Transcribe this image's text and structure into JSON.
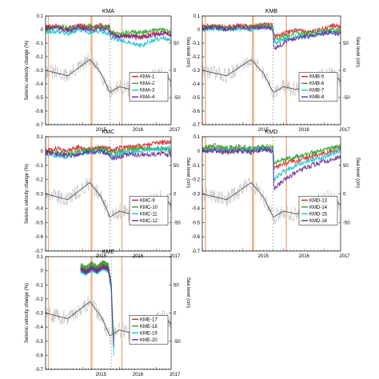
{
  "figure": {
    "shared": {
      "ylabel_left": "Seismic velocity change (%)",
      "ylabel_right": "Sea level (cm)",
      "y_left_ticks": [
        "0.1",
        "0",
        "-0.1",
        "-0.2",
        "-0.3",
        "-0.4",
        "-0.5",
        "-0.6",
        "-0.7"
      ],
      "y_left_range": [
        -0.7,
        0.1
      ],
      "y_right_ticks": [
        "50",
        "0",
        "-50"
      ],
      "y_right_range": [
        -100,
        100
      ],
      "x_ticks": [
        "2015",
        "2016",
        "2017"
      ],
      "x_range": [
        2014.0,
        2017.4
      ],
      "shaded_bands": [
        {
          "from": 2014.06,
          "to": 2014.09
        },
        {
          "from": 2015.22,
          "to": 2015.27
        },
        {
          "from": 2016.05,
          "to": 2016.08
        }
      ],
      "event_line": 2015.74,
      "event_line_zoom_panel": 2015.78,
      "colors": {
        "series1": "#d62728",
        "series2": "#2ca02c",
        "series3": "#17becf",
        "series4": "#6a2c91",
        "sea_level": "#888888",
        "band": "#f4b183"
      }
    },
    "panels": [
      {
        "id": "KMA",
        "title": "KMA",
        "labels": [
          "KMA-1",
          "KMA-2",
          "KMA-3",
          "KMA-4"
        ]
      },
      {
        "id": "KMB",
        "title": "KMB",
        "labels": [
          "KMB-5",
          "KMB-6",
          "KMB-7",
          "KMB-8"
        ]
      },
      {
        "id": "KMC",
        "title": "KMC",
        "labels": [
          "KMC-9",
          "KMC-10",
          "KMC-11",
          "KMC-12"
        ]
      },
      {
        "id": "KMD",
        "title": "KMD",
        "labels": [
          "KMD-13",
          "KMD-14",
          "KMD-15",
          "KMD-16"
        ]
      },
      {
        "id": "KME",
        "title": "KME",
        "labels": [
          "KME-17",
          "KME-18",
          "KME-19",
          "KME-20"
        ]
      }
    ]
  },
  "chart_data": [
    {
      "type": "line",
      "title": "KMA",
      "xlabel": "",
      "ylabel": "Seismic velocity change (%)",
      "y2label": "Sea level (cm)",
      "xlim": [
        2014.0,
        2017.4
      ],
      "ylim": [
        -0.7,
        0.1
      ],
      "y2lim": [
        -100,
        100
      ],
      "x": [
        2014.0,
        2014.3,
        2014.6,
        2014.9,
        2015.2,
        2015.5,
        2015.74,
        2015.76,
        2016.0,
        2016.3,
        2016.6,
        2016.9,
        2017.2,
        2017.4
      ],
      "series": [
        {
          "name": "KMA-1",
          "values": [
            0.02,
            0.03,
            0.0,
            0.03,
            0.02,
            0.03,
            0.02,
            -0.02,
            -0.05,
            -0.04,
            -0.05,
            -0.03,
            -0.02,
            -0.03
          ]
        },
        {
          "name": "KMA-2",
          "values": [
            0.0,
            0.02,
            0.02,
            0.01,
            0.03,
            0.02,
            0.03,
            -0.02,
            -0.03,
            -0.02,
            -0.02,
            -0.01,
            0.0,
            -0.02
          ]
        },
        {
          "name": "KMA-3",
          "values": [
            -0.02,
            -0.01,
            -0.03,
            0.0,
            -0.02,
            -0.01,
            -0.03,
            -0.06,
            -0.08,
            -0.09,
            -0.12,
            -0.08,
            -0.06,
            -0.08
          ]
        },
        {
          "name": "KMA-4",
          "values": [
            0.01,
            0.02,
            -0.01,
            0.02,
            0.0,
            0.01,
            0.0,
            -0.04,
            -0.05,
            -0.05,
            -0.06,
            -0.04,
            -0.03,
            -0.04
          ]
        },
        {
          "name": "",
          "axis": "right",
          "values": [
            0,
            -5,
            -10,
            5,
            20,
            -5,
            -40,
            -40,
            -30,
            -35,
            -30,
            -10,
            -5,
            -20
          ]
        }
      ]
    },
    {
      "type": "line",
      "title": "KMB",
      "xlabel": "",
      "ylabel": "",
      "y2label": "Sea level (cm)",
      "xlim": [
        2014.0,
        2017.4
      ],
      "ylim": [
        -0.7,
        0.1
      ],
      "y2lim": [
        -100,
        100
      ],
      "x": [
        2014.0,
        2014.3,
        2014.6,
        2014.9,
        2015.2,
        2015.5,
        2015.74,
        2015.76,
        2016.0,
        2016.3,
        2016.6,
        2016.9,
        2017.2,
        2017.4
      ],
      "series": [
        {
          "name": "KMB-5",
          "values": [
            0.02,
            0.03,
            0.02,
            0.03,
            0.02,
            0.04,
            0.03,
            -0.05,
            -0.03,
            0.0,
            -0.02,
            0.0,
            0.03,
            0.02
          ]
        },
        {
          "name": "KMB-6",
          "values": [
            0.01,
            0.02,
            0.01,
            0.02,
            0.02,
            0.03,
            0.02,
            -0.08,
            -0.05,
            -0.02,
            -0.03,
            -0.01,
            0.0,
            -0.01
          ]
        },
        {
          "name": "KMB-7",
          "values": [
            0.0,
            0.01,
            0.0,
            0.01,
            0.0,
            0.02,
            0.01,
            -0.1,
            -0.07,
            -0.05,
            -0.05,
            -0.03,
            -0.02,
            -0.03
          ]
        },
        {
          "name": "KMB-8",
          "values": [
            0.01,
            0.02,
            0.0,
            0.02,
            0.01,
            0.02,
            0.0,
            -0.14,
            -0.1,
            -0.06,
            -0.05,
            -0.03,
            -0.02,
            -0.04
          ]
        },
        {
          "name": "",
          "axis": "right",
          "values": [
            0,
            -5,
            -10,
            5,
            20,
            -5,
            -40,
            -40,
            -30,
            -35,
            -30,
            -10,
            -5,
            -20
          ]
        }
      ]
    },
    {
      "type": "line",
      "title": "KMC",
      "xlabel": "",
      "ylabel": "Seismic velocity change (%)",
      "y2label": "Sea level (cm)",
      "xlim": [
        2014.0,
        2017.4
      ],
      "ylim": [
        -0.7,
        0.1
      ],
      "y2lim": [
        -100,
        100
      ],
      "x": [
        2014.0,
        2014.3,
        2014.6,
        2014.9,
        2015.2,
        2015.5,
        2015.74,
        2015.76,
        2016.0,
        2016.3,
        2016.6,
        2016.9,
        2017.2,
        2017.4
      ],
      "series": [
        {
          "name": "KMC-9",
          "values": [
            0.0,
            0.02,
            0.0,
            0.03,
            0.01,
            0.03,
            0.02,
            0.0,
            0.02,
            0.03,
            0.04,
            0.05,
            0.06,
            0.06
          ]
        },
        {
          "name": "KMC-10",
          "values": [
            0.0,
            -0.01,
            -0.02,
            0.0,
            0.01,
            0.02,
            0.0,
            -0.02,
            0.0,
            0.01,
            0.02,
            0.02,
            0.01,
            0.0
          ]
        },
        {
          "name": "KMC-11",
          "values": [
            -0.02,
            -0.03,
            -0.04,
            -0.02,
            -0.01,
            0.0,
            -0.02,
            -0.04,
            -0.02,
            -0.01,
            0.0,
            0.01,
            0.02,
            0.02
          ]
        },
        {
          "name": "KMC-12",
          "values": [
            -0.01,
            -0.02,
            -0.03,
            -0.02,
            -0.01,
            0.0,
            -0.03,
            -0.05,
            -0.04,
            -0.02,
            -0.03,
            -0.02,
            -0.02,
            -0.03
          ]
        },
        {
          "name": "",
          "axis": "right",
          "values": [
            0,
            -5,
            -10,
            5,
            20,
            -5,
            -40,
            -40,
            -30,
            -35,
            -30,
            -10,
            -5,
            -20
          ]
        }
      ]
    },
    {
      "type": "line",
      "title": "KMD",
      "xlabel": "",
      "ylabel": "",
      "y2label": "Sea level (cm)",
      "xlim": [
        2014.0,
        2017.4
      ],
      "ylim": [
        -0.7,
        0.1
      ],
      "y2lim": [
        -100,
        100
      ],
      "x": [
        2014.0,
        2014.3,
        2014.6,
        2014.9,
        2015.2,
        2015.5,
        2015.74,
        2015.76,
        2016.0,
        2016.3,
        2016.6,
        2016.9,
        2017.2,
        2017.4
      ],
      "series": [
        {
          "name": "KMD-13",
          "values": [
            0.01,
            0.02,
            0.0,
            0.02,
            0.01,
            0.02,
            0.01,
            -0.12,
            -0.09,
            -0.07,
            -0.04,
            -0.02,
            0.0,
            0.02
          ]
        },
        {
          "name": "KMD-14",
          "values": [
            0.02,
            0.04,
            0.02,
            0.03,
            0.02,
            0.03,
            0.03,
            -0.08,
            -0.06,
            -0.04,
            -0.02,
            0.0,
            0.02,
            0.03
          ]
        },
        {
          "name": "KMD-15",
          "values": [
            0.0,
            0.01,
            0.0,
            0.01,
            0.0,
            0.02,
            0.0,
            -0.2,
            -0.14,
            -0.1,
            -0.07,
            -0.05,
            -0.02,
            0.0
          ]
        },
        {
          "name": "KMD-16",
          "values": [
            0.0,
            0.0,
            -0.01,
            0.0,
            -0.01,
            0.01,
            0.0,
            -0.27,
            -0.2,
            -0.15,
            -0.11,
            -0.08,
            -0.06,
            -0.04
          ]
        },
        {
          "name": "",
          "axis": "right",
          "values": [
            0,
            -5,
            -10,
            5,
            20,
            -5,
            -40,
            -40,
            -30,
            -35,
            -30,
            -10,
            -5,
            -20
          ]
        }
      ]
    },
    {
      "type": "line",
      "title": "KME",
      "xlabel": "",
      "ylabel": "Seismic velocity change (%)",
      "y2label": "Sea level (cm)",
      "xlim": [
        2014.0,
        2017.4
      ],
      "ylim": [
        -0.7,
        0.1
      ],
      "y2lim": [
        -100,
        100
      ],
      "x": [
        2014.95,
        2015.1,
        2015.25,
        2015.4,
        2015.55,
        2015.7,
        2015.78,
        2015.82,
        2015.85
      ],
      "series": [
        {
          "name": "KME-17",
          "values": [
            0.02,
            0.0,
            0.03,
            0.01,
            0.04,
            0.02,
            -0.1,
            -0.4,
            -0.56
          ]
        },
        {
          "name": "KME-18",
          "values": [
            0.04,
            0.02,
            0.05,
            0.03,
            0.06,
            0.04,
            -0.08,
            -0.35,
            -0.5
          ]
        },
        {
          "name": "KME-19",
          "values": [
            0.0,
            -0.02,
            0.01,
            -0.01,
            0.02,
            0.0,
            -0.15,
            -0.45,
            -0.6
          ]
        },
        {
          "name": "KME-20",
          "values": [
            0.01,
            -0.01,
            0.02,
            0.0,
            0.03,
            0.01,
            -0.12,
            -0.42,
            -0.52
          ]
        },
        {
          "name": "",
          "axis": "right",
          "x": [
            2014.0,
            2014.3,
            2014.6,
            2014.9,
            2015.2,
            2015.5,
            2015.74,
            2015.76,
            2016.0,
            2016.3,
            2016.6,
            2016.9,
            2017.2,
            2017.4
          ],
          "values": [
            0,
            -5,
            -10,
            5,
            20,
            -5,
            -40,
            -40,
            -30,
            -35,
            -30,
            -10,
            -5,
            -20
          ]
        }
      ]
    }
  ]
}
